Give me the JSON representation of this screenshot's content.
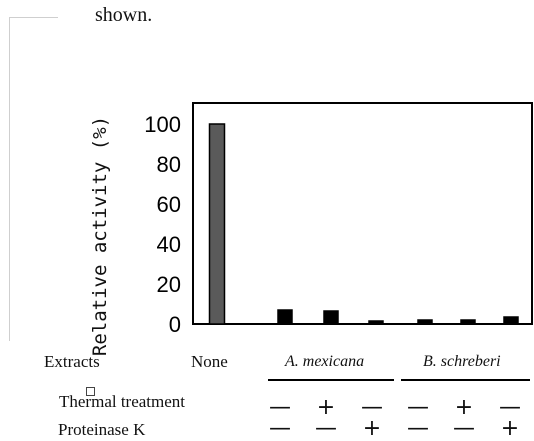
{
  "caption_fragment": "shown.",
  "chart_data": {
    "type": "bar",
    "categories": [
      "None",
      "A. mexicana 1",
      "A. mexicana 2",
      "A. mexicana 3",
      "B. schreberi 1",
      "B. schreberi 2",
      "B. schreberi 3"
    ],
    "values": [
      100,
      7,
      6.5,
      1.5,
      2,
      2,
      3.5
    ],
    "colors": [
      "#5a5a5a",
      "#000000",
      "#000000",
      "#000000",
      "#000000",
      "#000000",
      "#000000"
    ],
    "ylabel": "Relative activity (%)",
    "ylim": [
      0,
      100
    ],
    "yticks": [
      "100",
      "80",
      "60",
      "40",
      "20",
      "0"
    ],
    "grid": false
  },
  "table": {
    "extracts_label": "Extracts",
    "none_label": "None",
    "group_a": "A. mexicana",
    "group_b": "B. schreberi",
    "thermal_label": "Thermal treatment",
    "proteinase_label": "Proteinase K",
    "thermal_signs": [
      "—",
      "+",
      "—",
      "—",
      "+",
      "—"
    ],
    "proteinase_signs": [
      "—",
      "—",
      "+",
      "—",
      "—",
      "+"
    ]
  }
}
